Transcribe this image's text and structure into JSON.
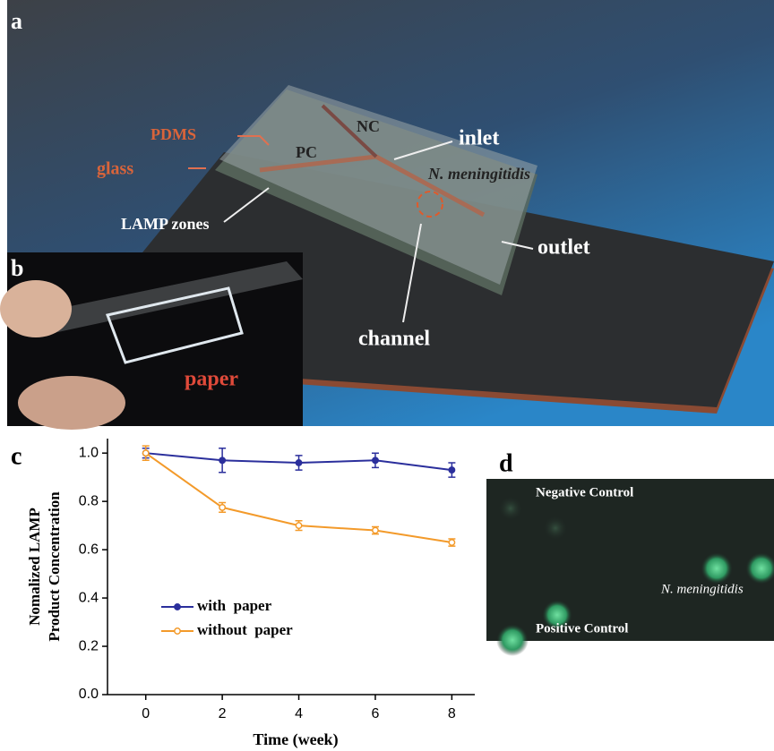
{
  "panel_labels": [
    "a",
    "b",
    "c",
    "d"
  ],
  "panel_a": {
    "glass": "glass",
    "pdms": "PDMS",
    "nc": "NC",
    "pc": "PC",
    "inlet": "inlet",
    "target": "N. meningitidis",
    "lamp_zones": "LAMP zones",
    "outlet": "outlet",
    "channel": "channel"
  },
  "panel_b": {
    "paper": "paper"
  },
  "panel_d": {
    "negative": "Negative Control",
    "target": "N. meningitidis",
    "positive": "Positive Control"
  },
  "chart_data": {
    "type": "line",
    "xlabel": "Time (week)",
    "ylabel": [
      "Nomalized LAMP",
      "Product Concentration"
    ],
    "x": [
      0,
      2,
      4,
      6,
      8
    ],
    "xlim": [
      -1,
      8.6
    ],
    "xticks": [
      0,
      2,
      4,
      6,
      8
    ],
    "ylim": [
      0,
      1.06
    ],
    "yticks": [
      {
        "value": 0,
        "label": "0.0"
      },
      0.2,
      0.4,
      0.6,
      0.8,
      {
        "value": 1,
        "label": "1.0"
      }
    ],
    "legend": "lower left",
    "series": [
      {
        "name": "with  paper",
        "color": "#2b2f9c",
        "marker": "filled",
        "values": [
          1.0,
          0.97,
          0.96,
          0.97,
          0.93
        ],
        "errors": [
          0.02,
          0.05,
          0.03,
          0.03,
          0.03
        ]
      },
      {
        "name": "without  paper",
        "color": "#f39a2a",
        "marker": "hollow",
        "values": [
          1.0,
          0.775,
          0.7,
          0.68,
          0.63
        ],
        "errors": [
          0.03,
          0.02,
          0.02,
          0.015,
          0.015
        ]
      }
    ]
  }
}
